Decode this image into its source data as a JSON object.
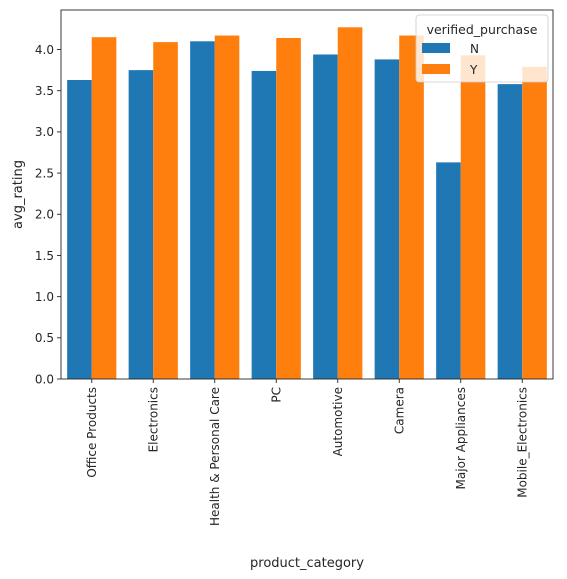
{
  "chart_data": {
    "type": "bar",
    "categories": [
      "Office Products",
      "Electronics",
      "Health & Personal Care",
      "PC",
      "Automotive",
      "Camera",
      "Major Appliances",
      "Mobile_Electronics"
    ],
    "series": [
      {
        "name": "N",
        "color": "#1f77b4",
        "values": [
          3.63,
          3.75,
          4.1,
          3.74,
          3.94,
          3.88,
          2.63,
          3.58
        ]
      },
      {
        "name": "Y",
        "color": "#ff7f0e",
        "values": [
          4.15,
          4.09,
          4.17,
          4.14,
          4.27,
          4.17,
          3.93,
          3.79
        ]
      }
    ],
    "xlabel": "product_category",
    "ylabel": "avg_rating",
    "ylim": [
      0,
      4.48
    ],
    "yticks": [
      "0.0",
      "0.5",
      "1.0",
      "1.5",
      "2.0",
      "2.5",
      "3.0",
      "3.5",
      "4.0"
    ],
    "legend": {
      "title": "verified_purchase",
      "placement": "top-right"
    },
    "grid": false
  }
}
